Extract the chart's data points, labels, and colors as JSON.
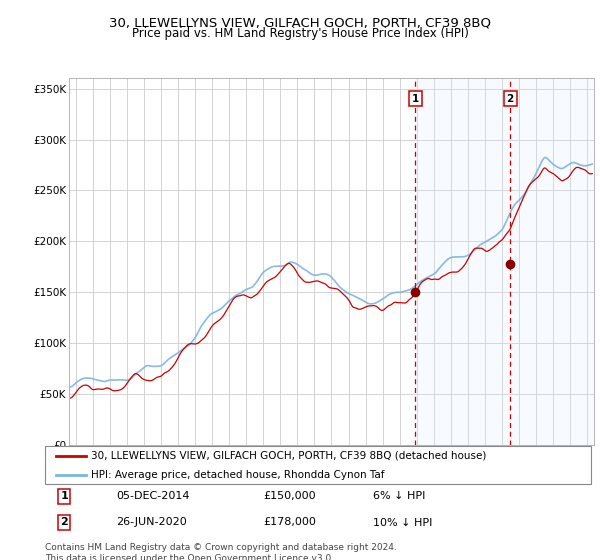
{
  "title": "30, LLEWELLYNS VIEW, GILFACH GOCH, PORTH, CF39 8BQ",
  "subtitle": "Price paid vs. HM Land Registry's House Price Index (HPI)",
  "ylim": [
    0,
    360000
  ],
  "yticks": [
    0,
    50000,
    100000,
    150000,
    200000,
    250000,
    300000,
    350000
  ],
  "ytick_labels": [
    "£0",
    "£50K",
    "£100K",
    "£150K",
    "£200K",
    "£250K",
    "£300K",
    "£350K"
  ],
  "xlim_start": 1994.6,
  "xlim_end": 2025.4,
  "hpi_color": "#7ab4e0",
  "price_color": "#cc0000",
  "sale1_x": 2014.92,
  "sale1_y": 150000,
  "sale2_x": 2020.48,
  "sale2_y": 178000,
  "sale1_label": "1",
  "sale2_label": "2",
  "vline_color": "#cc0000",
  "shading_color": "#ddeeff",
  "legend_line1": "30, LLEWELLYNS VIEW, GILFACH GOCH, PORTH, CF39 8BQ (detached house)",
  "legend_line2": "HPI: Average price, detached house, Rhondda Cynon Taf",
  "table_row1": [
    "1",
    "05-DEC-2014",
    "£150,000",
    "6% ↓ HPI"
  ],
  "table_row2": [
    "2",
    "26-JUN-2020",
    "£178,000",
    "10% ↓ HPI"
  ],
  "footnote": "Contains HM Land Registry data © Crown copyright and database right 2024.\nThis data is licensed under the Open Government Licence v3.0.",
  "background_color": "#ffffff",
  "grid_color": "#cccccc",
  "title_fontsize": 9.5,
  "subtitle_fontsize": 8.5,
  "tick_fontsize": 7.5,
  "legend_fontsize": 7.5,
  "table_fontsize": 8,
  "footnote_fontsize": 6.5
}
